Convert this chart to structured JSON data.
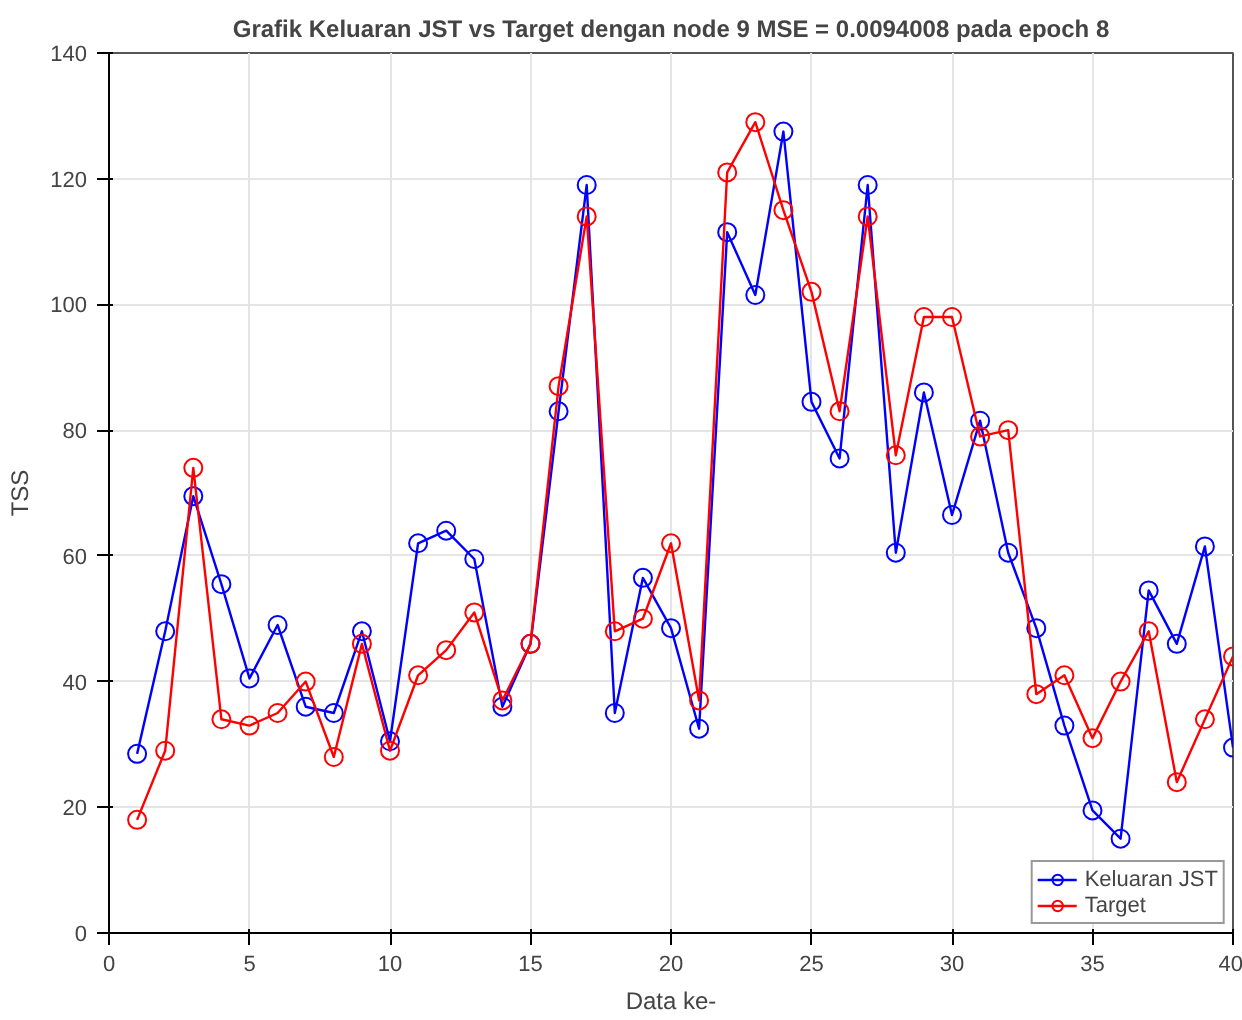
{
  "chart_data": {
    "type": "line",
    "title": "Grafik Keluaran JST vs Target dengan node 9 MSE = 0.0094008 pada epoch 8",
    "xlabel": "Data ke-",
    "ylabel": "TSS",
    "x": [
      1,
      2,
      3,
      4,
      5,
      6,
      7,
      8,
      9,
      10,
      11,
      12,
      13,
      14,
      15,
      16,
      17,
      18,
      19,
      20,
      21,
      22,
      23,
      24,
      25,
      26,
      27,
      28,
      29,
      30,
      31,
      32,
      33,
      34,
      35,
      36,
      37,
      38,
      39,
      40
    ],
    "series": [
      {
        "name": "Keluaran JST",
        "color": "#0000ff",
        "values": [
          28.5,
          48,
          69.5,
          55.5,
          40.5,
          49,
          36,
          35,
          48,
          30.5,
          62,
          64,
          59.5,
          36,
          46,
          83,
          119,
          35,
          56.5,
          48.5,
          32.5,
          111.5,
          101.5,
          127.5,
          84.5,
          75.5,
          119,
          60.5,
          86,
          66.5,
          81.5,
          60.5,
          48.5,
          33,
          19.5,
          15,
          54.5,
          46,
          61.5,
          29.5
        ]
      },
      {
        "name": "Target",
        "color": "#ff0000",
        "values": [
          18,
          29,
          74,
          34,
          33,
          35,
          40,
          28,
          46,
          29,
          41,
          45,
          51,
          37,
          46,
          87,
          114,
          48,
          50,
          62,
          37,
          121,
          129,
          115,
          102,
          83,
          114,
          76,
          98,
          98,
          79,
          80,
          38,
          41,
          31,
          40,
          48,
          24,
          34,
          44
        ]
      }
    ],
    "xlim": [
      0,
      40
    ],
    "ylim": [
      0,
      140
    ],
    "xticks": [
      0,
      5,
      10,
      15,
      20,
      25,
      30,
      35,
      40
    ],
    "yticks": [
      0,
      20,
      40,
      60,
      80,
      100,
      120,
      140
    ],
    "grid": true,
    "legend": "bottom right",
    "marker": "circle",
    "line_style": "solid"
  }
}
